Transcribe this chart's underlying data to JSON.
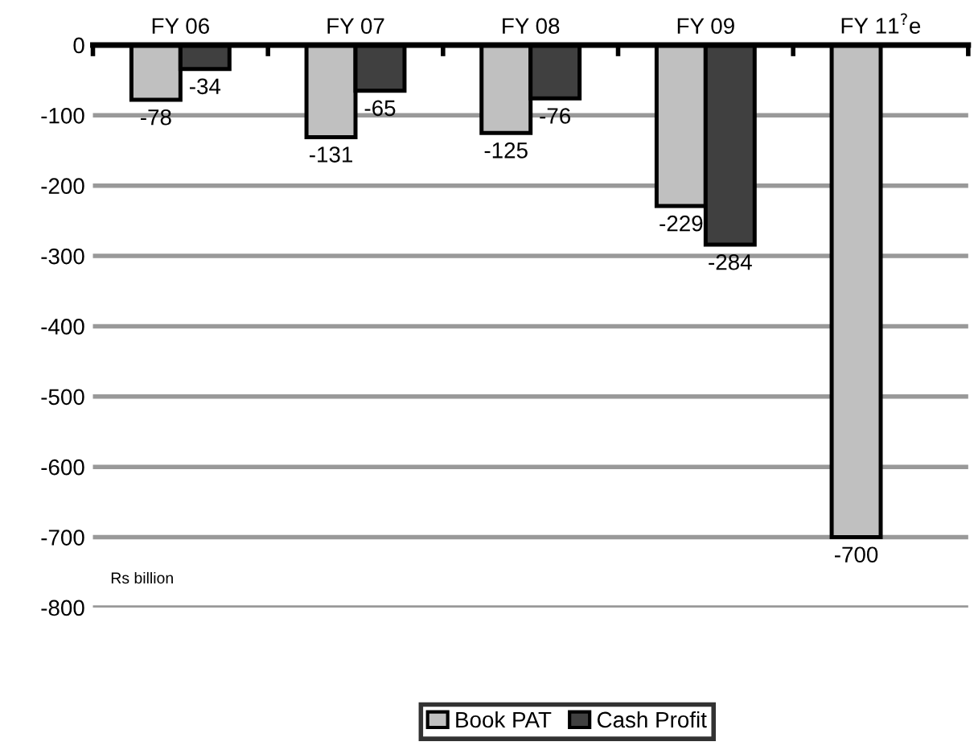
{
  "chart_data": {
    "type": "bar",
    "categories": [
      "FY 06",
      "FY 07",
      "FY 08",
      "FY 09",
      "FY 11$^{?}$e"
    ],
    "series": [
      {
        "name": "Book PAT",
        "color": "#c0c0c0",
        "values": [
          -78,
          -131,
          -125,
          -229,
          -700
        ]
      },
      {
        "name": "Cash Profit",
        "color": "#404040",
        "values": [
          -34,
          -65,
          -76,
          -284,
          null
        ]
      }
    ],
    "ylim": [
      -800,
      0
    ],
    "yticks": [
      -800,
      -700,
      -600,
      -500,
      -400,
      -300,
      -200,
      -100,
      0
    ],
    "grid": "y",
    "legend": "bottom",
    "data_labels": true,
    "annotations": [
      "Rs billion"
    ]
  }
}
